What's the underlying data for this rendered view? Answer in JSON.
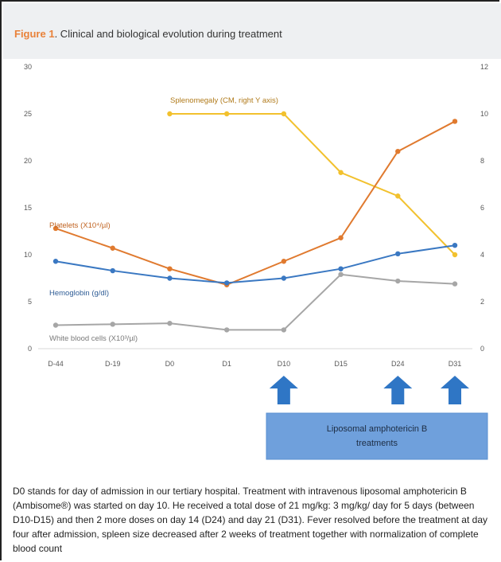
{
  "caption": {
    "figure_label": "Figure 1",
    "title": ". Clinical and biological evolution during treatment"
  },
  "chart_data": {
    "type": "line",
    "categories": [
      "D-44",
      "D-19",
      "D0",
      "D1",
      "D10",
      "D15",
      "D24",
      "D31"
    ],
    "y_left": {
      "range": [
        0,
        30
      ],
      "ticks": [
        0,
        5,
        10,
        15,
        20,
        25,
        30
      ]
    },
    "y_right": {
      "range": [
        0,
        12
      ],
      "ticks": [
        0,
        2,
        4,
        6,
        8,
        10,
        12
      ]
    },
    "grid": false,
    "series": [
      {
        "name": "Splenomegaly (CM, right Y axis)",
        "axis": "right",
        "color": "#f2c12e",
        "values": [
          null,
          null,
          10,
          10,
          10,
          7.5,
          6.5,
          4
        ]
      },
      {
        "name": "Platelets (X10⁴/µl)",
        "axis": "left",
        "color": "#e07a2f",
        "values": [
          12.8,
          10.7,
          8.5,
          6.8,
          9.3,
          11.8,
          21,
          24.2
        ]
      },
      {
        "name": "Hemoglobin (g/dl)",
        "axis": "left",
        "color": "#3a78c2",
        "values": [
          9.3,
          8.3,
          7.5,
          7,
          7.5,
          8.5,
          10.1,
          11
        ]
      },
      {
        "name": "White blood cells (X10³/µl)",
        "axis": "left",
        "color": "#a6a6a6",
        "values": [
          2.5,
          2.6,
          2.7,
          2,
          2,
          7.9,
          7.2,
          6.9
        ]
      }
    ],
    "treatment_days": [
      "D10",
      "D24",
      "D31"
    ],
    "treatment_label_line1": "Liposomal amphotericin B",
    "treatment_label_line2": "treatments",
    "colors": {
      "arrow": "#2f76c5",
      "box": "#6fa0dc",
      "axis_text": "#595959"
    }
  },
  "note": "D0 stands for day of admission in our tertiary hospital. Treatment with intravenous liposomal amphotericin B (Ambisome®) was started on day 10. He received a total dose of 21 mg/kg: 3 mg/kg/ day for 5 days (between D10-D15) and then 2 more doses on day 14 (D24) and day 21 (D31). Fever resolved before the treatment at day four after admission, spleen size decreased after 2 weeks of treatment together with normalization of complete blood count"
}
